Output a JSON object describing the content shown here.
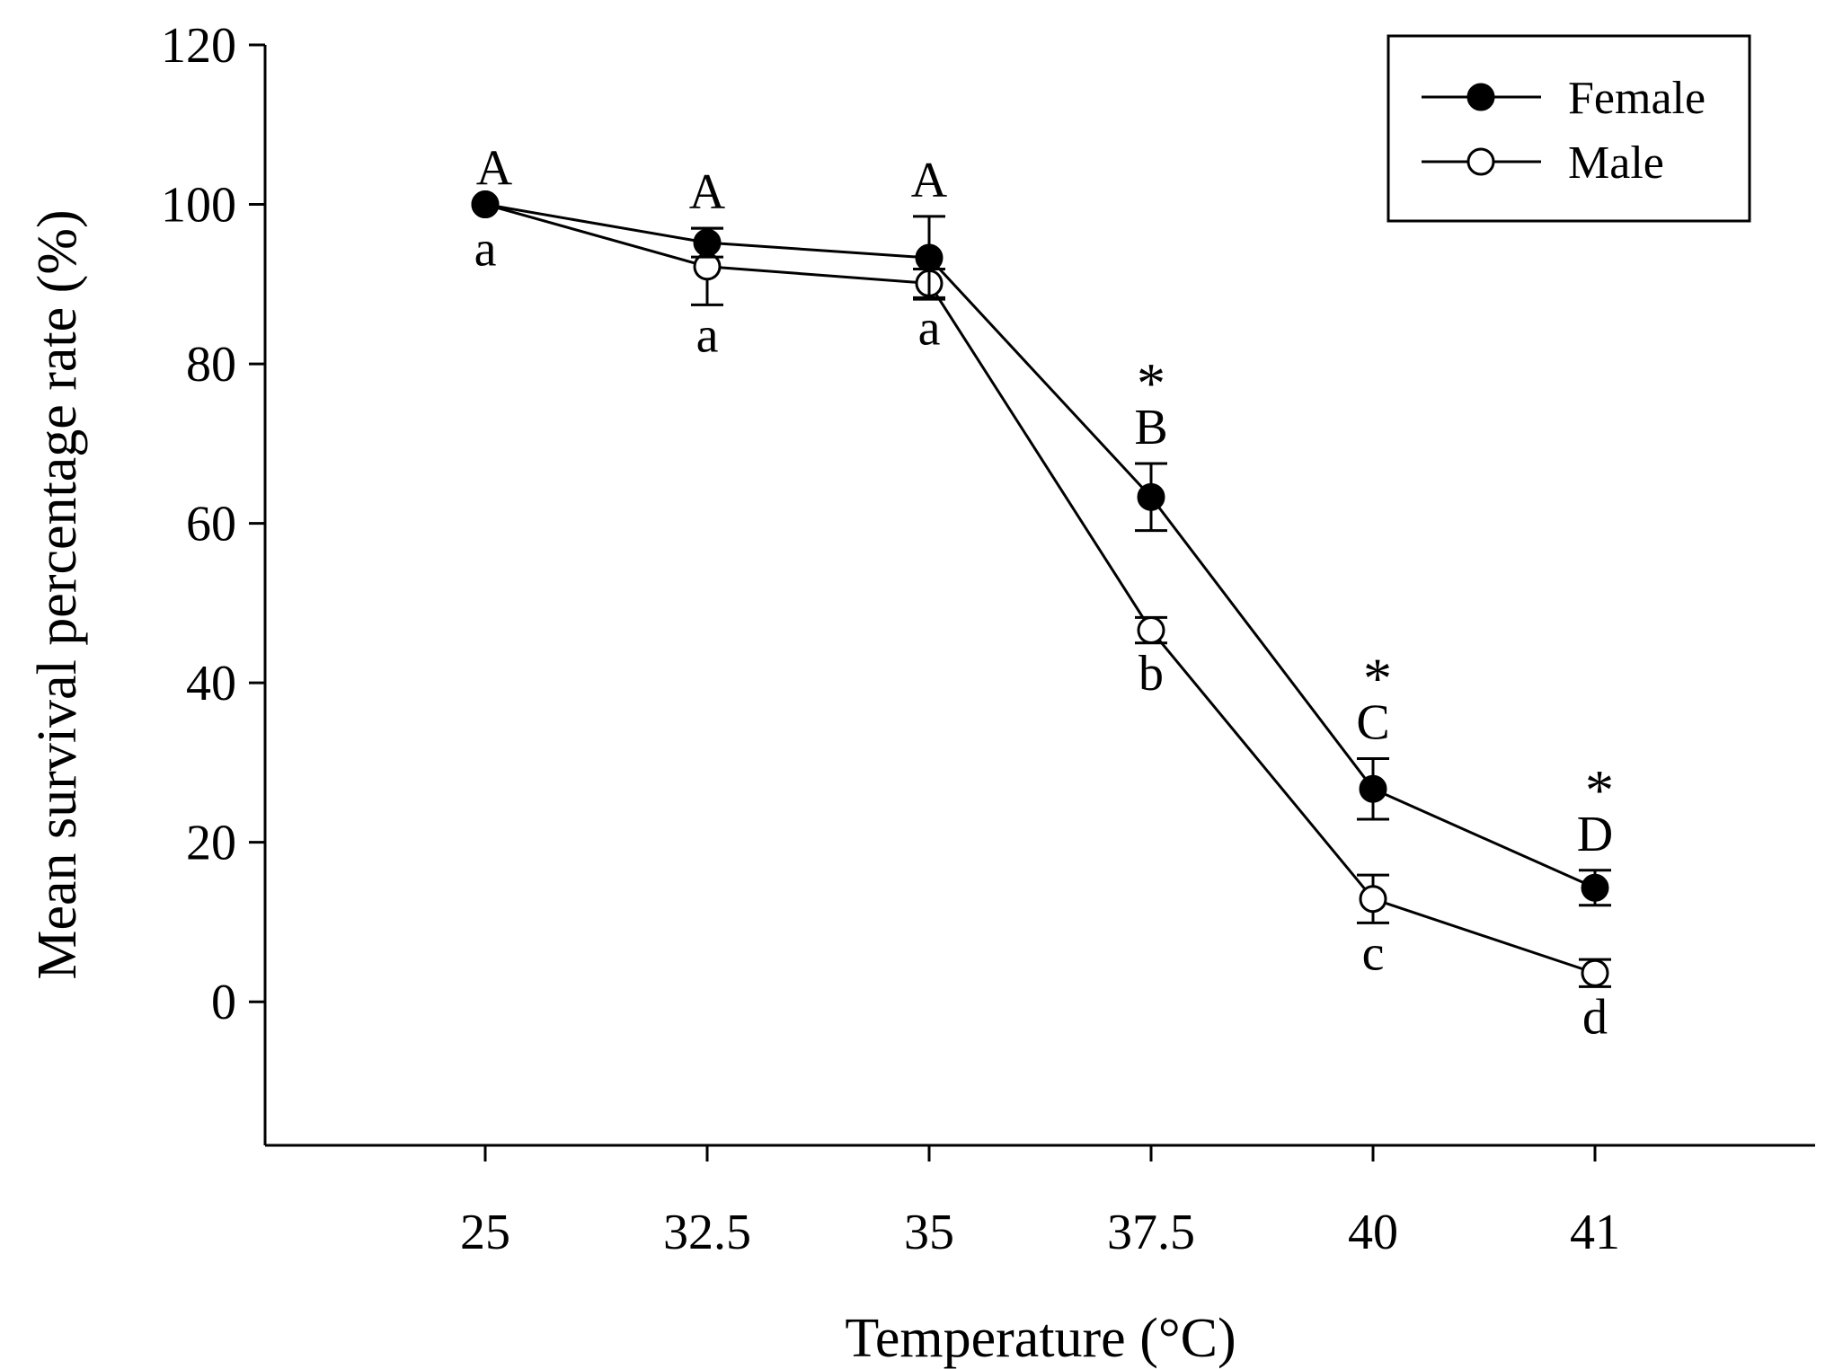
{
  "chart_data": {
    "type": "line",
    "title": "",
    "xlabel": "Temperature (°C)",
    "ylabel": "Mean survival percentage rate (%)",
    "ylim": [
      -18,
      120
    ],
    "yticks": [
      0,
      20,
      40,
      60,
      80,
      100,
      120
    ],
    "categories": [
      "25",
      "32.5",
      "35",
      "37.5",
      "40",
      "41"
    ],
    "grid": false,
    "legend_position": "top-right",
    "series": [
      {
        "name": "Female",
        "marker": "filled-circle",
        "values": [
          100,
          95.2,
          93.3,
          63.3,
          26.7,
          14.3
        ],
        "errors": [
          0,
          1.8,
          5.2,
          4.2,
          3.8,
          2.2
        ],
        "letters": [
          "A",
          "A",
          "A",
          "B",
          "C",
          "D"
        ],
        "significant": [
          false,
          false,
          false,
          true,
          true,
          true
        ]
      },
      {
        "name": "Male",
        "marker": "open-circle",
        "values": [
          100,
          92.2,
          90.1,
          46.6,
          12.9,
          3.6
        ],
        "errors": [
          0,
          4.8,
          1.8,
          1.6,
          3.0,
          1.7
        ],
        "letters": [
          "a",
          "a",
          "a",
          "b",
          "c",
          "d"
        ]
      }
    ],
    "significance_symbol": "*"
  }
}
